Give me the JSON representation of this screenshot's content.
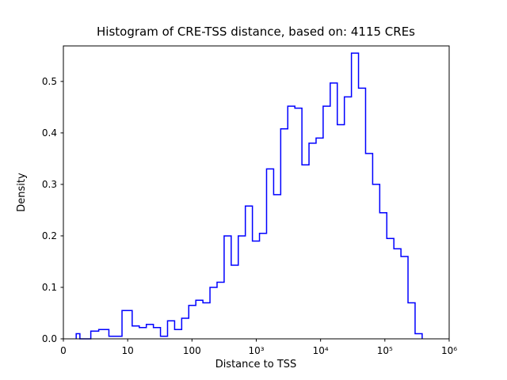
{
  "figure": {
    "background_color": "#ffffff",
    "axis_color": "#000000"
  },
  "chart_data": {
    "type": "bar",
    "subtype": "step-histogram",
    "title": "Histogram of CRE-TSS distance, based on: 4115 CREs",
    "xlabel": "Distance to TSS",
    "ylabel": "Density",
    "n_cres": 4115,
    "x_scale": "symlog",
    "ylim": [
      0,
      0.569
    ],
    "line_color": "#0000ff",
    "legend": "none",
    "grid": false,
    "x_ticks": [
      {
        "value": 0,
        "label": "0"
      },
      {
        "value": 10,
        "label": "10"
      },
      {
        "value": 100,
        "label": "100"
      },
      {
        "value": 1000,
        "label": "10³"
      },
      {
        "value": 10000,
        "label": "10⁴"
      },
      {
        "value": 100000,
        "label": "10⁵"
      },
      {
        "value": 1000000,
        "label": "10⁶"
      }
    ],
    "y_ticks": [
      {
        "value": 0.0,
        "label": "0.0"
      },
      {
        "value": 0.1,
        "label": "0.1"
      },
      {
        "value": 0.2,
        "label": "0.2"
      },
      {
        "value": 0.3,
        "label": "0.3"
      },
      {
        "value": 0.4,
        "label": "0.4"
      },
      {
        "value": 0.5,
        "label": "0.5"
      }
    ],
    "bin_edges_log10": [
      0.3,
      0.41,
      0.52,
      0.63,
      0.74,
      0.85,
      0.96,
      1.07,
      1.18,
      1.29,
      1.4,
      1.51,
      1.62,
      1.73,
      1.84,
      1.95,
      2.06,
      2.17,
      2.28,
      2.39,
      2.5,
      2.61,
      2.72,
      2.83,
      2.94,
      3.05,
      3.16,
      3.27,
      3.38,
      3.49,
      3.6,
      3.71,
      3.82,
      3.93,
      4.04,
      4.15,
      4.26,
      4.37,
      4.48,
      4.59,
      4.7,
      4.81,
      4.92,
      5.03,
      5.14,
      5.25,
      5.36,
      5.47,
      5.58
    ],
    "densities": [
      0.01,
      0.0,
      0.0,
      0.015,
      0.018,
      0.005,
      0.055,
      0.025,
      0.022,
      0.028,
      0.022,
      0.005,
      0.035,
      0.018,
      0.04,
      0.065,
      0.075,
      0.07,
      0.1,
      0.11,
      0.2,
      0.143,
      0.2,
      0.258,
      0.19,
      0.205,
      0.33,
      0.28,
      0.408,
      0.452,
      0.448,
      0.338,
      0.38,
      0.39,
      0.452,
      0.497,
      0.416,
      0.47,
      0.555,
      0.487,
      0.36,
      0.3,
      0.245,
      0.195,
      0.175,
      0.16,
      0.07,
      0.01
    ]
  }
}
